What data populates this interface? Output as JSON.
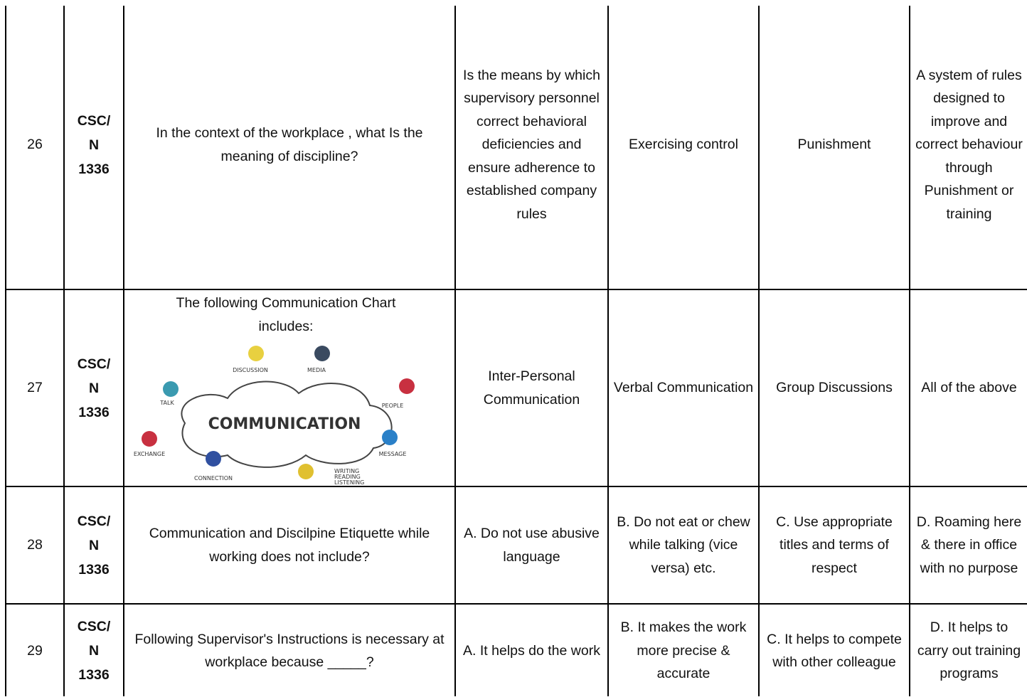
{
  "table": {
    "rows": [
      [
        "26",
        "CSC/\nN\n1336",
        "In the context of the workplace , what Is the meaning of discipline?",
        "Is the means by which supervisory personnel correct behavioral deficiencies and ensure adherence to established company rules",
        "Exercising control",
        "Punishment",
        "A system of rules designed to improve and correct behaviour through Punishment or training"
      ],
      [
        "27",
        "CSC/\nN\n1336",
        "The following Communication Chart includes:",
        "Inter-Personal Communication",
        "Verbal Communication",
        "Group Discussions",
        "All of the above"
      ],
      [
        "28",
        "CSC/\nN\n1336",
        "Communication and Discilpine Etiquette while working does not include?",
        "A. Do not use abusive language",
        "B. Do not eat or chew while talking (vice versa) etc.",
        "C. Use appropriate titles and terms of respect",
        "D. Roaming here & there in office with no purpose"
      ],
      [
        "29",
        "CSC/\nN\n1336",
        "Following Supervisor's Instructions is necessary at   workplace because _____?",
        "A. It helps do the work",
        "B. It makes the work more precise & accurate",
        "C. It helps to compete with other colleague",
        "D. It helps to carry out training programs"
      ]
    ]
  },
  "figure": {
    "center": "COMMUNICATION",
    "labels": [
      "DISCUSSION",
      "MEDIA",
      "TALK",
      "PEOPLE",
      "EXCHANGE",
      "MESSAGE",
      "CONNECTION",
      "WRITING",
      "READING",
      "LISTENING"
    ]
  }
}
